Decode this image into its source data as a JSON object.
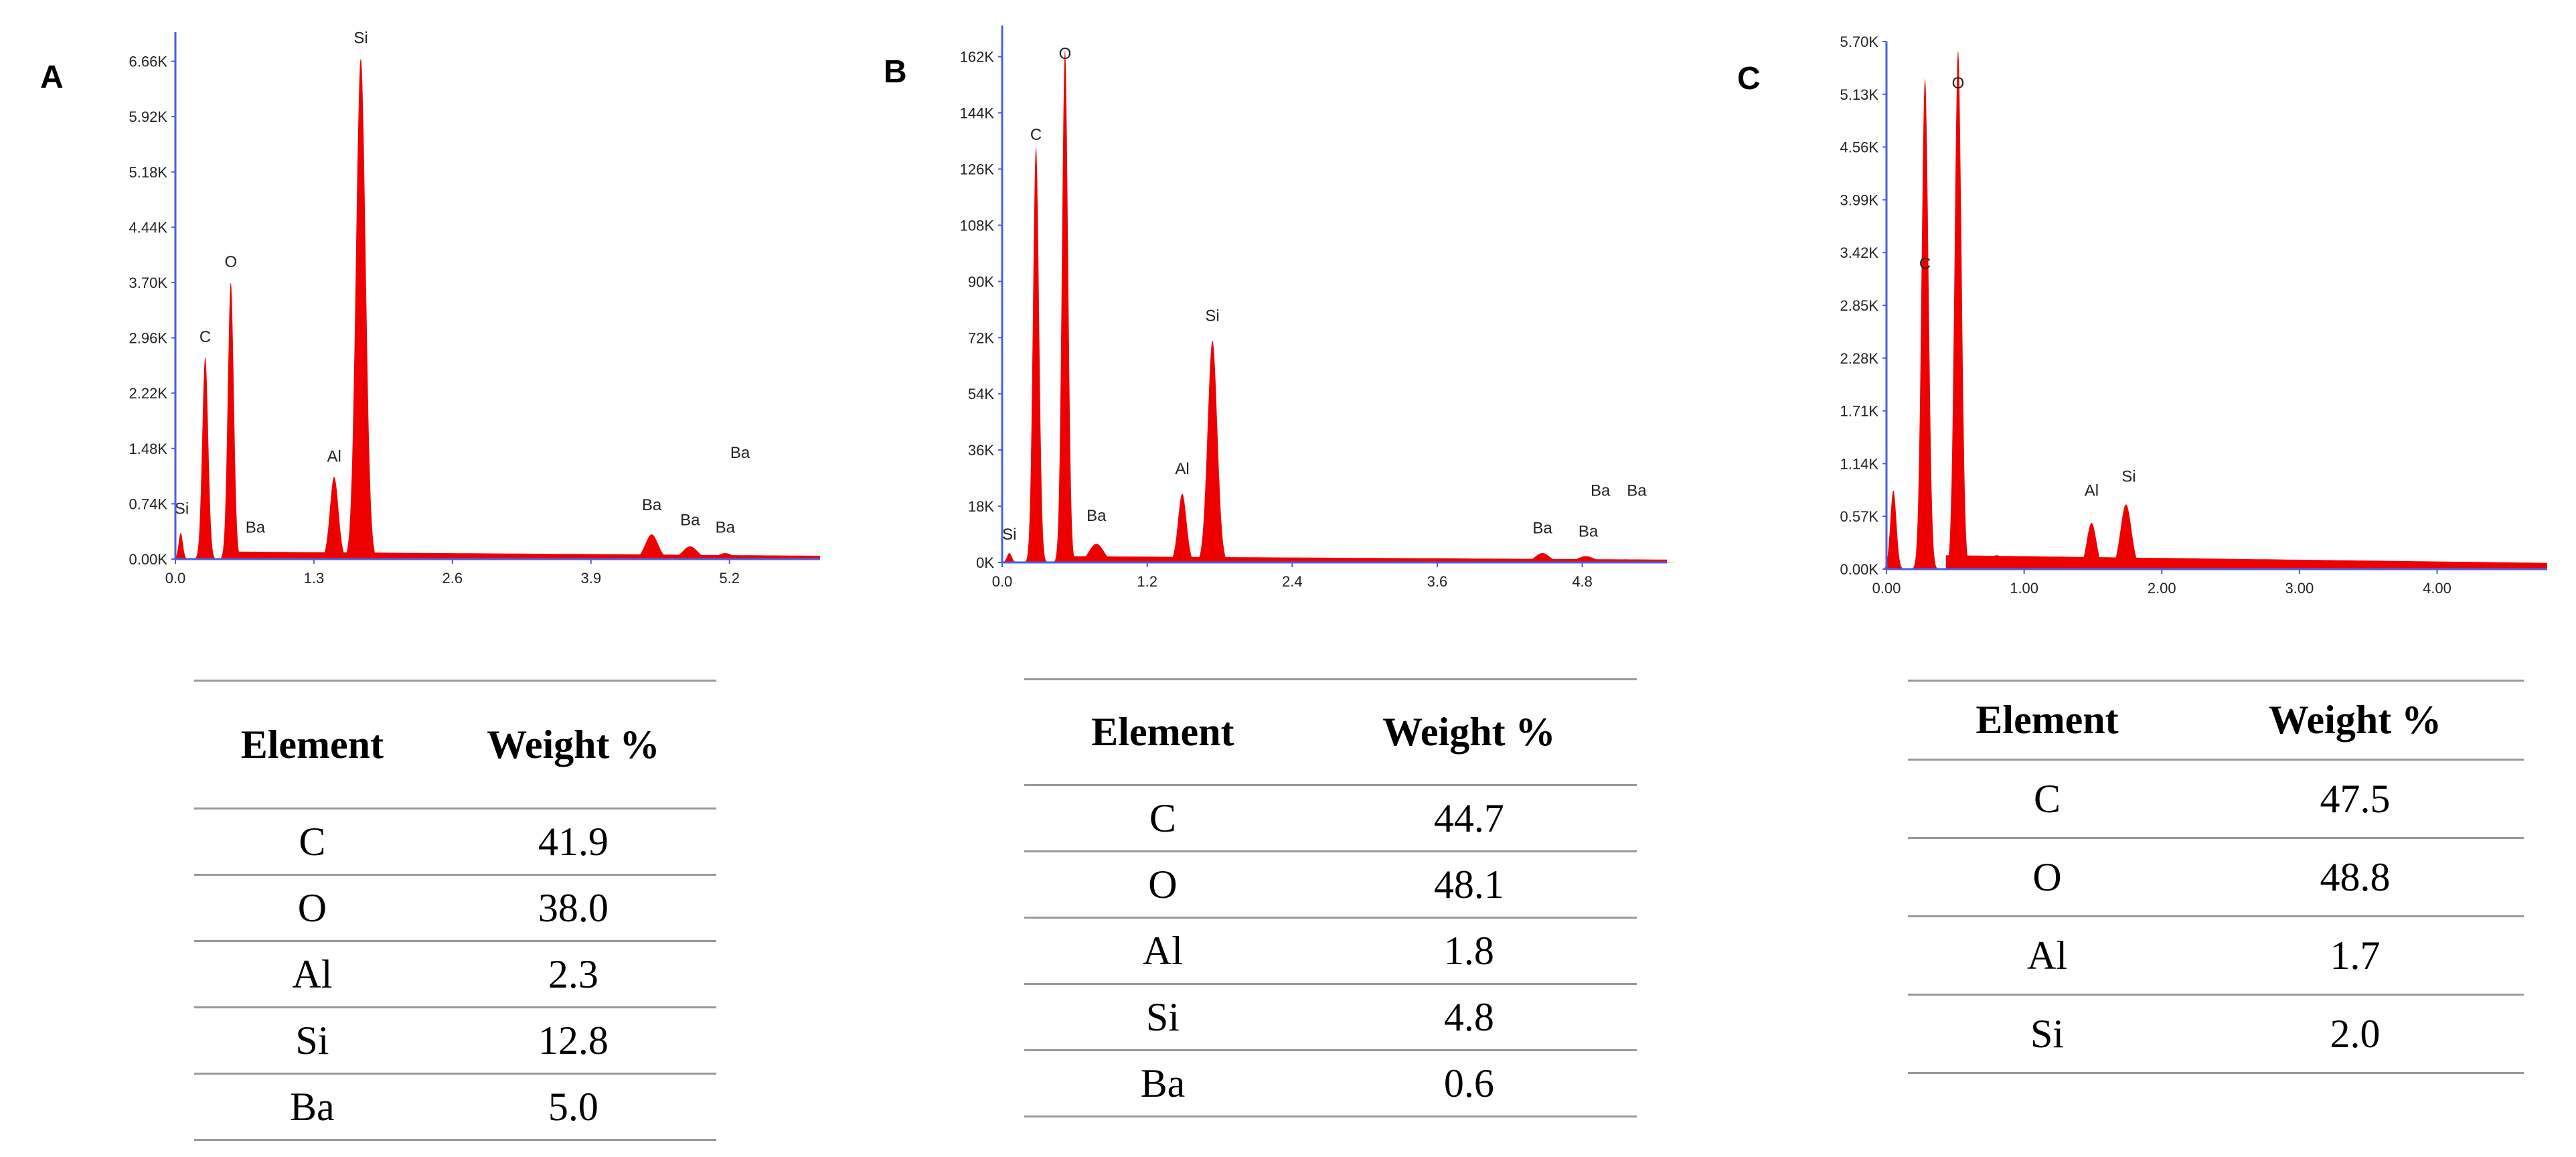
{
  "figure": {
    "panels": [
      {
        "label": "A"
      },
      {
        "label": "B"
      },
      {
        "label": "C"
      }
    ]
  },
  "chart_data": [
    {
      "type": "line",
      "panel": "A",
      "title": "",
      "xlabel": "",
      "ylabel": "",
      "xlim": [
        0,
        6.05
      ],
      "ylim": [
        0,
        7.05
      ],
      "x_ticks": [
        0.0,
        1.3,
        2.6,
        3.9,
        5.2
      ],
      "x_tick_labels": [
        "0.0",
        "1.3",
        "2.6",
        "3.9",
        "5.2"
      ],
      "y_ticks": [
        0,
        0.74,
        1.48,
        2.22,
        2.96,
        3.7,
        4.44,
        5.18,
        5.92,
        6.66
      ],
      "y_tick_labels": [
        "0.00K",
        "0.74K",
        "1.48K",
        "2.22K",
        "2.96K",
        "3.70K",
        "4.44K",
        "5.18K",
        "5.92K",
        "6.66K"
      ],
      "y_unit": "K counts",
      "baseline": 0.1,
      "peaks": [
        {
          "x": 0.05,
          "y": 0.35,
          "w": 0.02,
          "label": "Si",
          "lx": 0.06,
          "ly": 0.55
        },
        {
          "x": 0.28,
          "y": 2.7,
          "w": 0.028,
          "label": "C",
          "lx": 0.28,
          "ly": 2.85
        },
        {
          "x": 0.52,
          "y": 3.7,
          "w": 0.028,
          "label": "O",
          "lx": 0.52,
          "ly": 3.85
        },
        {
          "x": 0.75,
          "y": 0.1,
          "w": 0.05,
          "label": "Ba",
          "lx": 0.75,
          "ly": 0.3
        },
        {
          "x": 1.49,
          "y": 1.1,
          "w": 0.04,
          "label": "Al",
          "lx": 1.49,
          "ly": 1.25
        },
        {
          "x": 1.74,
          "y": 6.7,
          "w": 0.045,
          "label": "Si",
          "lx": 1.74,
          "ly": 6.85
        },
        {
          "x": 4.47,
          "y": 0.33,
          "w": 0.06,
          "label": "Ba",
          "lx": 4.47,
          "ly": 0.6
        },
        {
          "x": 4.83,
          "y": 0.17,
          "w": 0.07,
          "label": "Ba",
          "lx": 4.83,
          "ly": 0.4
        },
        {
          "x": 5.16,
          "y": 0.08,
          "w": 0.07,
          "label": "Ba",
          "lx": 5.16,
          "ly": 0.3
        },
        {
          "x": 5.4,
          "y": 0.04,
          "w": 0.07,
          "label": "Ba",
          "lx": 5.3,
          "ly": 1.3
        }
      ]
    },
    {
      "type": "line",
      "panel": "B",
      "title": "",
      "xlabel": "",
      "ylabel": "",
      "xlim": [
        0,
        5.5
      ],
      "ylim": [
        0,
        172
      ],
      "x_ticks": [
        0.0,
        1.2,
        2.4,
        3.6,
        4.8
      ],
      "x_tick_labels": [
        "0.0",
        "1.2",
        "2.4",
        "3.6",
        "4.8"
      ],
      "y_ticks": [
        0,
        18,
        36,
        54,
        72,
        90,
        108,
        126,
        144,
        162
      ],
      "y_tick_labels": [
        "0K",
        "18K",
        "36K",
        "54K",
        "72K",
        "90K",
        "108K",
        "126K",
        "144K",
        "162K"
      ],
      "y_unit": "K counts",
      "baseline": 2,
      "peaks": [
        {
          "x": 0.06,
          "y": 3,
          "w": 0.02,
          "label": "Si",
          "lx": 0.06,
          "ly": 6
        },
        {
          "x": 0.28,
          "y": 133,
          "w": 0.025,
          "label": "C",
          "lx": 0.28,
          "ly": 134
        },
        {
          "x": 0.52,
          "y": 164,
          "w": 0.025,
          "label": "O",
          "lx": 0.52,
          "ly": 160
        },
        {
          "x": 0.78,
          "y": 6,
          "w": 0.06,
          "label": "Ba",
          "lx": 0.78,
          "ly": 12
        },
        {
          "x": 1.49,
          "y": 22,
          "w": 0.035,
          "label": "Al",
          "lx": 1.49,
          "ly": 27
        },
        {
          "x": 1.74,
          "y": 71,
          "w": 0.04,
          "label": "Si",
          "lx": 1.74,
          "ly": 76
        },
        {
          "x": 4.47,
          "y": 3,
          "w": 0.06,
          "label": "Ba",
          "lx": 4.47,
          "ly": 8
        },
        {
          "x": 4.83,
          "y": 2,
          "w": 0.07,
          "label": "Ba",
          "lx": 4.85,
          "ly": 7
        },
        {
          "x": 5.16,
          "y": 1,
          "w": 0.07,
          "label": "Ba",
          "lx": 4.95,
          "ly": 20
        },
        {
          "x": 5.4,
          "y": 0.5,
          "w": 0.07,
          "label": "Ba",
          "lx": 5.25,
          "ly": 20
        }
      ]
    },
    {
      "type": "line",
      "panel": "C",
      "title": "",
      "xlabel": "",
      "ylabel": "",
      "xlim": [
        0,
        4.8
      ],
      "ylim": [
        0,
        5.7
      ],
      "x_ticks": [
        0.0,
        1.0,
        2.0,
        3.0,
        4.0
      ],
      "x_tick_labels": [
        "0.00",
        "1.00",
        "2.00",
        "3.00",
        "4.00"
      ],
      "y_ticks": [
        0,
        0.57,
        1.14,
        1.71,
        2.28,
        2.85,
        3.42,
        3.99,
        4.56,
        5.13,
        5.7
      ],
      "y_tick_labels": [
        "0.00K",
        "0.57K",
        "1.14K",
        "1.71K",
        "2.28K",
        "2.85K",
        "3.42K",
        "3.99K",
        "4.56K",
        "5.13K",
        "5.70K"
      ],
      "y_unit": "K counts",
      "baseline": 0.15,
      "peaks": [
        {
          "x": 0.05,
          "y": 0.85,
          "w": 0.022,
          "label": "",
          "lx": 0,
          "ly": 0
        },
        {
          "x": 0.28,
          "y": 5.3,
          "w": 0.025,
          "label": "C",
          "lx": 0.28,
          "ly": 3.2
        },
        {
          "x": 0.52,
          "y": 5.6,
          "w": 0.025,
          "label": "O",
          "lx": 0.52,
          "ly": 5.15
        },
        {
          "x": 0.8,
          "y": 0.15,
          "w": 0.07,
          "label": "",
          "lx": 0,
          "ly": 0
        },
        {
          "x": 1.49,
          "y": 0.5,
          "w": 0.035,
          "label": "Al",
          "lx": 1.49,
          "ly": 0.75
        },
        {
          "x": 1.74,
          "y": 0.7,
          "w": 0.04,
          "label": "Si",
          "lx": 1.76,
          "ly": 0.9
        }
      ]
    }
  ],
  "tables": [
    {
      "panel": "A",
      "headers": [
        "Element",
        "Weight %"
      ],
      "rows": [
        [
          "C",
          "41.9"
        ],
        [
          "O",
          "38.0"
        ],
        [
          "Al",
          "2.3"
        ],
        [
          "Si",
          "12.8"
        ],
        [
          "Ba",
          "5.0"
        ]
      ]
    },
    {
      "panel": "B",
      "headers": [
        "Element",
        "Weight %"
      ],
      "rows": [
        [
          "C",
          "44.7"
        ],
        [
          "O",
          "48.1"
        ],
        [
          "Al",
          "1.8"
        ],
        [
          "Si",
          "4.8"
        ],
        [
          "Ba",
          "0.6"
        ]
      ]
    },
    {
      "panel": "C",
      "headers": [
        "Element",
        "Weight %"
      ],
      "rows": [
        [
          "C",
          "47.5"
        ],
        [
          "O",
          "48.8"
        ],
        [
          "Al",
          "1.7"
        ],
        [
          "Si",
          "2.0"
        ]
      ]
    }
  ],
  "colors": {
    "spectrum_fill": "#ee0000",
    "axis": "#4a5fe0",
    "tick_text": "#222222",
    "table_rule": "#999999"
  }
}
